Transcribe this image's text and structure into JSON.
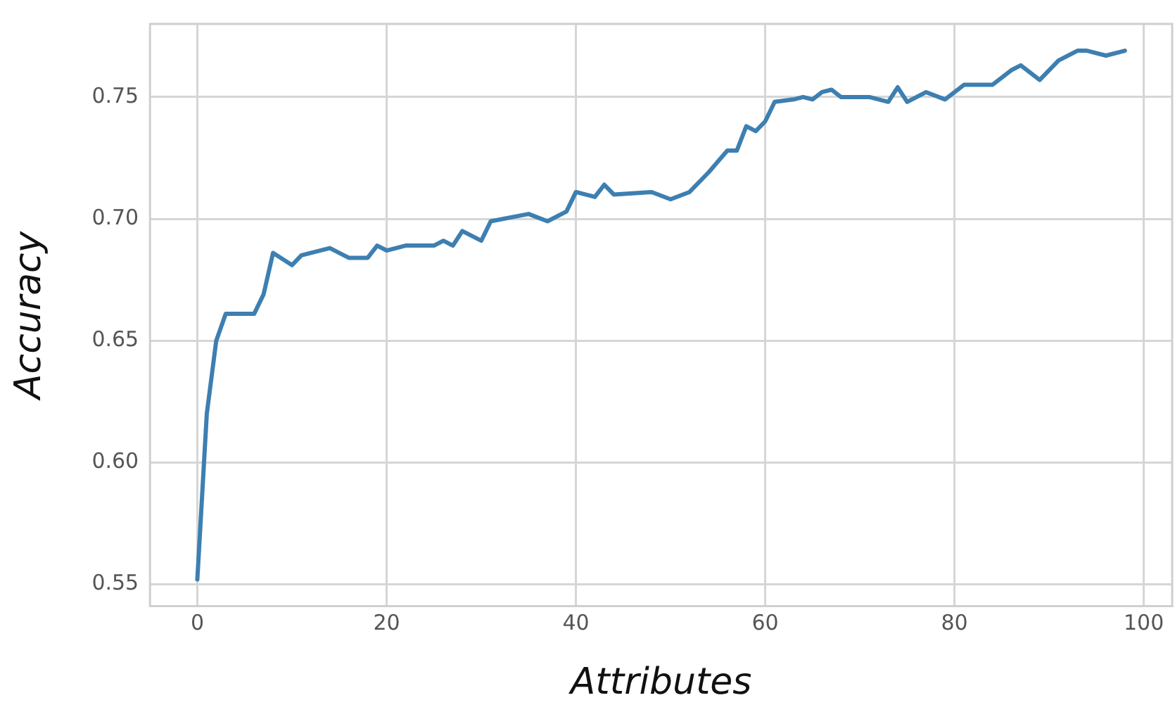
{
  "chart_data": {
    "type": "line",
    "xlabel": "Attributes",
    "ylabel": "Accuracy",
    "x": [
      0,
      1,
      2,
      3,
      6,
      7,
      8,
      10,
      11,
      14,
      16,
      18,
      19,
      20,
      22,
      25,
      26,
      27,
      28,
      30,
      31,
      35,
      37,
      39,
      40,
      42,
      43,
      44,
      48,
      50,
      52,
      54,
      56,
      57,
      58,
      59,
      60,
      61,
      63,
      64,
      65,
      66,
      67,
      68,
      71,
      73,
      74,
      75,
      77,
      79,
      81,
      83,
      84,
      86,
      87,
      89,
      91,
      93,
      94,
      96,
      98
    ],
    "series": [
      {
        "color": "#3d7fb1",
        "values": [
          0.552,
          0.62,
          0.65,
          0.661,
          0.661,
          0.669,
          0.686,
          0.681,
          0.685,
          0.688,
          0.684,
          0.684,
          0.689,
          0.687,
          0.689,
          0.689,
          0.691,
          0.689,
          0.695,
          0.691,
          0.699,
          0.702,
          0.699,
          0.703,
          0.711,
          0.709,
          0.714,
          0.71,
          0.711,
          0.708,
          0.711,
          0.719,
          0.728,
          0.728,
          0.738,
          0.736,
          0.74,
          0.748,
          0.749,
          0.75,
          0.749,
          0.752,
          0.753,
          0.75,
          0.75,
          0.748,
          0.754,
          0.748,
          0.752,
          0.749,
          0.755,
          0.755,
          0.755,
          0.761,
          0.763,
          0.757,
          0.765,
          0.769,
          0.769,
          0.767,
          0.769
        ]
      }
    ],
    "xlim": [
      -5,
      103
    ],
    "xticks": [
      0,
      20,
      40,
      60,
      80,
      100
    ],
    "ylim": [
      0.541,
      0.78
    ],
    "yticks": [
      {
        "value": 0.55,
        "label": "0.55"
      },
      {
        "value": 0.6,
        "label": "0.60"
      },
      {
        "value": 0.65,
        "label": "0.65"
      },
      {
        "value": 0.7,
        "label": "0.70"
      },
      {
        "value": 0.75,
        "label": "0.75"
      }
    ],
    "grid": true,
    "legend": false,
    "marker": "none",
    "line_style": "solid"
  }
}
